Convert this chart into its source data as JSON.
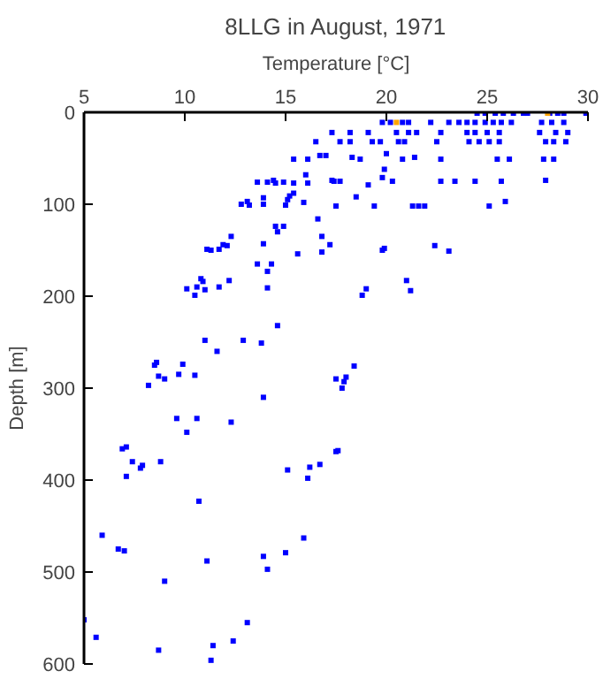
{
  "chart_data": {
    "type": "scatter",
    "title": "8LLG in August, 1971",
    "xlabel": "Temperature [°C]",
    "ylabel": "Depth [m]",
    "xlim": [
      5,
      30
    ],
    "xticks": [
      5,
      10,
      15,
      20,
      25,
      30
    ],
    "ylim": [
      600,
      0
    ],
    "yticks": [
      0,
      100,
      200,
      300,
      400,
      500,
      600
    ],
    "marker": "square",
    "series": [
      {
        "color": "#0000ff",
        "x": [
          24.5,
          24.9,
          25.4,
          25.8,
          26.3,
          26.8,
          27.0,
          28.1,
          28.5,
          28.8,
          29.9,
          19.8,
          20.2,
          20.8,
          21.1,
          22.2,
          23.1,
          23.6,
          24.0,
          24.4,
          24.9,
          25.3,
          25.7,
          26.2,
          27.7,
          28.2,
          28.8,
          17.3,
          18.2,
          19.1,
          20.5,
          21.1,
          21.5,
          22.7,
          24.0,
          24.4,
          25.0,
          25.6,
          27.6,
          28.4,
          29.0,
          16.5,
          17.7,
          18.2,
          19.3,
          19.7,
          20.6,
          20.9,
          22.5,
          24.1,
          24.6,
          25.1,
          25.6,
          27.9,
          28.3,
          28.9,
          15.4,
          16.1,
          16.7,
          17.0,
          18.3,
          18.7,
          20.0,
          20.8,
          21.4,
          22.7,
          25.5,
          26.1,
          27.8,
          28.3,
          16.0,
          19.9,
          19.8,
          13.6,
          14.1,
          14.4,
          14.5,
          14.9,
          15.4,
          16.1,
          17.3,
          17.4,
          17.7,
          19.1,
          20.3,
          22.7,
          23.4,
          24.4,
          25.7,
          27.9,
          18.5,
          12.8,
          13.1,
          13.2,
          13.9,
          13.9,
          15.0,
          15.1,
          15.2,
          15.4,
          15.9,
          17.5,
          19.4,
          21.3,
          21.6,
          21.9,
          25.1,
          25.9,
          14.5,
          14.9,
          14.6,
          16.6,
          16.8,
          17.2,
          16.8,
          15.6,
          12.3,
          12.1,
          11.9,
          11.7,
          11.3,
          11.1,
          13.9,
          13.6,
          14.3,
          14.1,
          14.1,
          19.9,
          19.8,
          22.4,
          23.1,
          21.0,
          21.2,
          19.0,
          18.8,
          10.8,
          10.9,
          10.1,
          10.6,
          11.0,
          11.7,
          10.5,
          12.2,
          14.6,
          11.0,
          11.6,
          12.9,
          13.8,
          8.6,
          8.5,
          9.9,
          8.7,
          9.0,
          9.7,
          10.5,
          8.2,
          17.5,
          18.4,
          18.0,
          17.9,
          17.8,
          13.9,
          9.6,
          10.6,
          10.1,
          12.3,
          6.9,
          7.1,
          7.4,
          7.9,
          7.8,
          8.8,
          7.1,
          10.7,
          15.1,
          16.2,
          16.7,
          16.1,
          17.5,
          17.6,
          5.9,
          6.7,
          7.0,
          11.1,
          9.0,
          15.9,
          13.9,
          15.0,
          14.1,
          5.0,
          5.6,
          8.7,
          11.4,
          12.4,
          13.1,
          11.3
        ],
        "values": [
          1,
          1,
          1,
          1,
          1,
          1,
          1,
          1,
          1,
          1,
          1,
          11,
          11,
          11,
          11,
          11,
          11,
          11,
          11,
          11,
          11,
          11,
          11,
          11,
          11,
          11,
          11,
          22,
          22,
          22,
          22,
          22,
          22,
          22,
          22,
          22,
          22,
          22,
          22,
          22,
          22,
          32,
          32,
          32,
          32,
          32,
          32,
          32,
          32,
          32,
          32,
          32,
          32,
          32,
          32,
          32,
          51,
          51,
          47,
          47,
          49,
          51,
          45,
          51,
          49,
          51,
          51,
          51,
          51,
          51,
          68,
          62,
          71,
          76,
          76,
          74,
          77,
          76,
          77,
          77,
          74,
          75,
          75,
          79,
          75,
          75,
          75,
          75,
          75,
          74,
          92,
          100,
          97,
          101,
          93,
          100,
          101,
          95,
          91,
          88,
          98,
          102,
          102,
          102,
          102,
          102,
          102,
          97,
          124,
          124,
          130,
          116,
          135,
          144,
          152,
          154,
          135,
          145,
          144,
          149,
          150,
          149,
          143,
          165,
          165,
          173,
          191,
          148,
          150,
          145,
          151,
          183,
          194,
          192,
          199,
          181,
          184,
          192,
          190,
          193,
          190,
          199,
          183,
          232,
          248,
          260,
          248,
          251,
          272,
          275,
          274,
          287,
          290,
          285,
          286,
          297,
          290,
          276,
          288,
          293,
          300,
          310,
          333,
          333,
          348,
          337,
          366,
          364,
          380,
          384,
          387,
          380,
          396,
          423,
          389,
          386,
          383,
          398,
          369,
          368,
          460,
          475,
          477,
          488,
          510,
          463,
          483,
          479,
          497,
          552,
          571,
          585,
          580,
          575,
          555,
          596
        ]
      },
      {
        "color": "#ffa500",
        "x": [
          28.0,
          20.5
        ],
        "values": [
          1,
          11
        ]
      }
    ]
  }
}
